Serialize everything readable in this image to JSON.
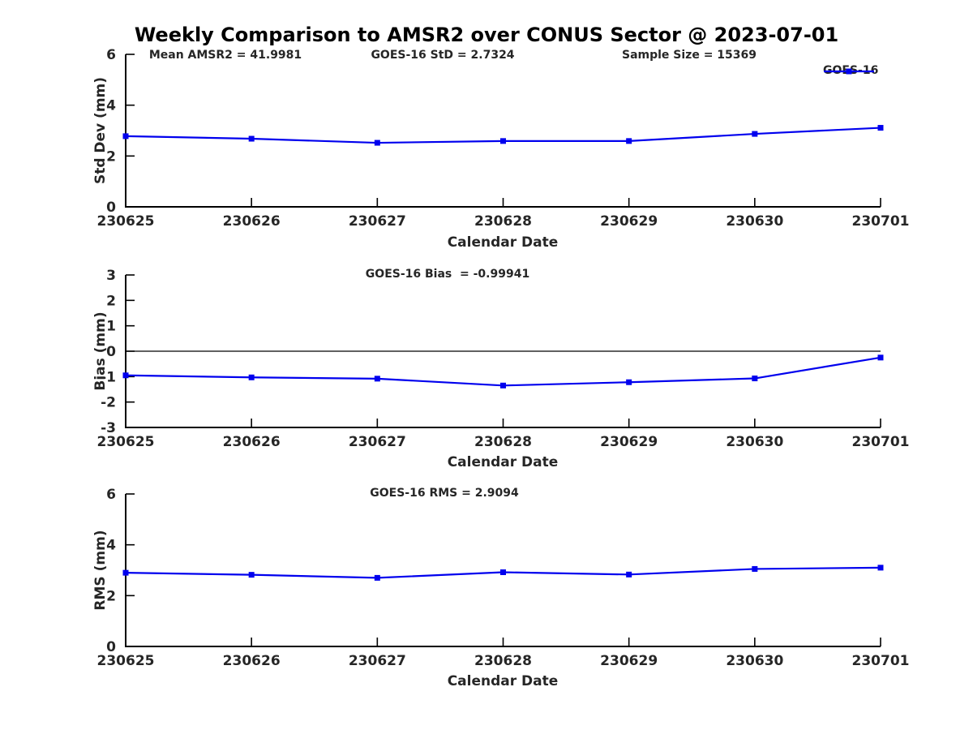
{
  "page": {
    "title": "Weekly Comparison to AMSR2 over CONUS Sector @ 2023-07-01"
  },
  "legend": {
    "label": "GOES-16",
    "color": "#0000EE"
  },
  "chart_data": [
    {
      "type": "line",
      "name": "std-dev-panel",
      "annotations": [
        "Mean AMSR2 = 41.9981",
        "GOES-16 StD = 2.7324",
        "Sample Size = 15369"
      ],
      "xlabel": "Calendar Date",
      "ylabel": "Std Dev (mm)",
      "categories": [
        "230625",
        "230626",
        "230627",
        "230628",
        "230629",
        "230630",
        "230701"
      ],
      "series": [
        {
          "name": "GOES-16",
          "color": "#0000EE",
          "marker": "square",
          "values": [
            2.78,
            2.68,
            2.52,
            2.59,
            2.59,
            2.87,
            3.11
          ]
        }
      ],
      "ylim": [
        0,
        6
      ],
      "yticks": [
        0,
        2,
        4,
        6
      ],
      "grid": false,
      "zero_line": false,
      "legend_position": "top-right"
    },
    {
      "type": "line",
      "name": "bias-panel",
      "annotations": [
        "GOES-16 Bias  = -0.99941"
      ],
      "xlabel": "Calendar Date",
      "ylabel": "Bias (mm)",
      "categories": [
        "230625",
        "230626",
        "230627",
        "230628",
        "230629",
        "230630",
        "230701"
      ],
      "series": [
        {
          "name": "GOES-16",
          "color": "#0000EE",
          "marker": "square",
          "values": [
            -0.95,
            -1.03,
            -1.08,
            -1.35,
            -1.22,
            -1.07,
            -0.25
          ]
        }
      ],
      "ylim": [
        -3,
        3
      ],
      "yticks": [
        3,
        2,
        1,
        0,
        -1,
        -2,
        -3
      ],
      "grid": false,
      "zero_line": true,
      "legend_position": "none"
    },
    {
      "type": "line",
      "name": "rms-panel",
      "annotations": [
        "GOES-16 RMS = 2.9094"
      ],
      "xlabel": "Calendar Date",
      "ylabel": "RMS (mm)",
      "categories": [
        "230625",
        "230626",
        "230627",
        "230628",
        "230629",
        "230630",
        "230701"
      ],
      "series": [
        {
          "name": "GOES-16",
          "color": "#0000EE",
          "marker": "square",
          "values": [
            2.9,
            2.82,
            2.7,
            2.92,
            2.83,
            3.05,
            3.1
          ]
        }
      ],
      "ylim": [
        0,
        6
      ],
      "yticks": [
        0,
        2,
        4,
        6
      ],
      "grid": false,
      "zero_line": false,
      "legend_position": "none"
    }
  ]
}
